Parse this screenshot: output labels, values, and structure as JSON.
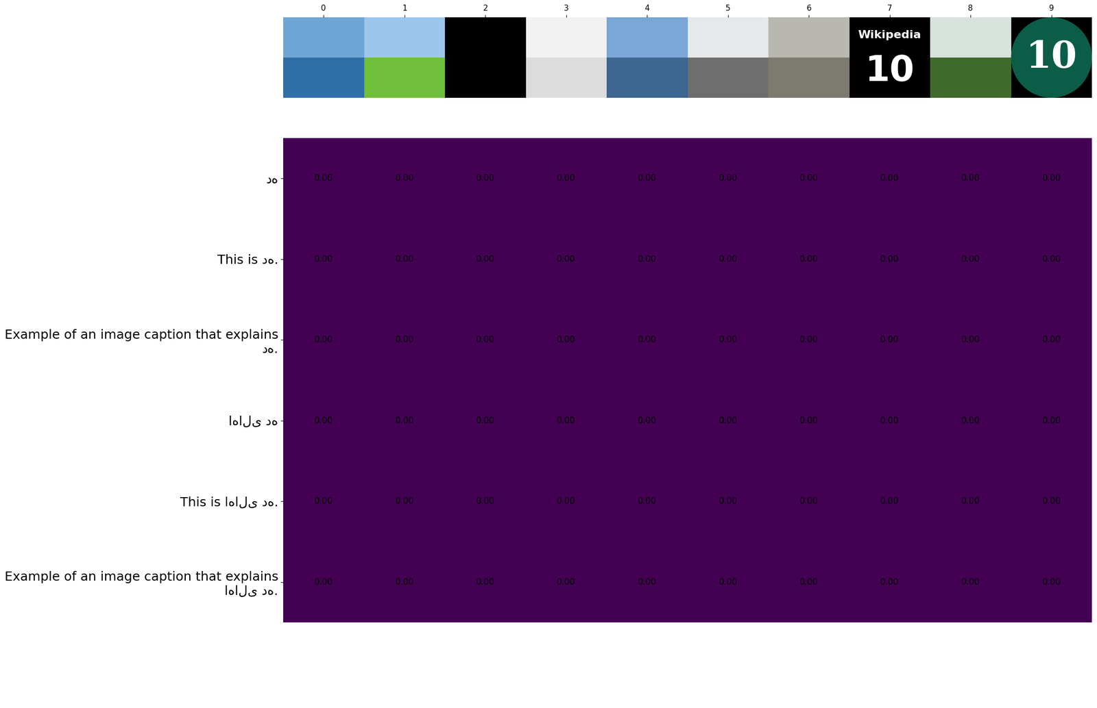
{
  "chart_data": {
    "type": "heatmap",
    "categories": [
      "ده",
      "This is ده.",
      "Example of an image caption that explains ده.",
      "اهالی ده",
      "This is اهالی ده.",
      "Example of an image caption that explains اهالی ده."
    ],
    "xticks": [
      0,
      1,
      2,
      3,
      4,
      5,
      6,
      7,
      8,
      9
    ],
    "cells": [
      [
        0,
        0,
        0,
        0,
        0,
        0,
        0,
        0,
        0,
        0
      ],
      [
        0,
        0,
        0,
        0,
        0,
        0,
        0,
        0,
        0,
        0
      ],
      [
        0,
        0,
        0,
        0,
        0,
        0,
        0,
        0,
        0,
        0
      ],
      [
        0,
        0,
        0,
        0,
        0,
        0,
        0,
        0,
        0,
        0
      ],
      [
        0,
        0,
        0,
        0,
        0,
        0,
        0,
        0,
        0,
        0
      ],
      [
        0,
        0,
        0,
        0,
        0,
        0,
        0,
        0,
        0,
        0
      ]
    ],
    "value_labels": [
      [
        "0.00",
        "0.00",
        "0.00",
        "0.00",
        "0.00",
        "0.00",
        "0.00",
        "0.00",
        "0.00",
        "0.00"
      ],
      [
        "0.00",
        "0.00",
        "0.00",
        "0.00",
        "0.00",
        "0.00",
        "0.00",
        "0.00",
        "0.00",
        "0.00"
      ],
      [
        "0.00",
        "0.00",
        "0.00",
        "0.00",
        "0.00",
        "0.00",
        "0.00",
        "0.00",
        "0.00",
        "0.00"
      ],
      [
        "0.00",
        "0.00",
        "0.00",
        "0.00",
        "0.00",
        "0.00",
        "0.00",
        "0.00",
        "0.00",
        "0.00"
      ],
      [
        "0.00",
        "0.00",
        "0.00",
        "0.00",
        "0.00",
        "0.00",
        "0.00",
        "0.00",
        "0.00",
        "0.00"
      ],
      [
        "0.00",
        "0.00",
        "0.00",
        "0.00",
        "0.00",
        "0.00",
        "0.00",
        "0.00",
        "0.00",
        "0.00"
      ]
    ],
    "image_texts": {
      "7": [
        "Wikipedia",
        "10"
      ],
      "9": [
        "10"
      ]
    }
  }
}
